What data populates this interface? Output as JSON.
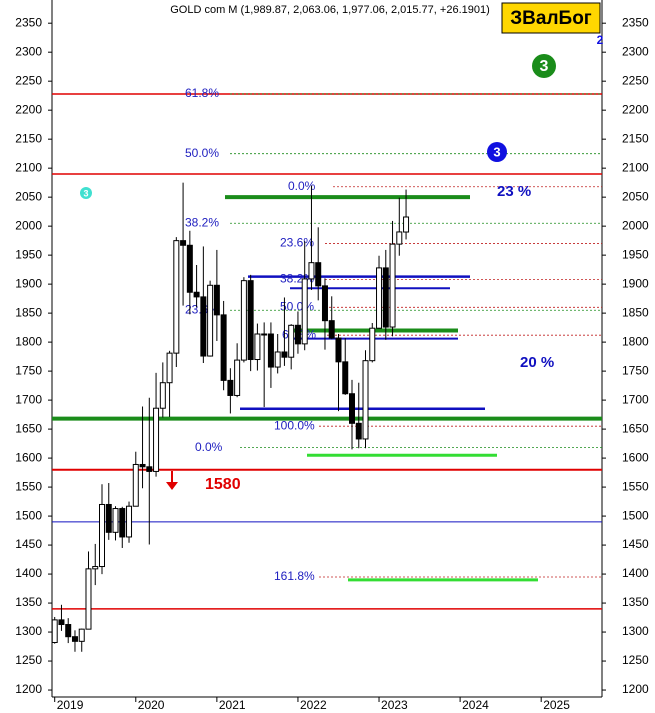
{
  "chart_data": {
    "type": "candlestick",
    "title": "GOLD com M (1,989.87, 2,063.06, 1,977.06, 2,015.77, +26.1901)",
    "badge": "ЗВалБог",
    "open": [
      1282,
      1321,
      1313,
      1292,
      1284,
      1305,
      1409,
      1413,
      1520,
      1472,
      1513,
      1464,
      1517,
      1589,
      1585,
      1577,
      1686,
      1730,
      1781,
      1975,
      1967,
      1886,
      1878,
      1776,
      1898,
      1847,
      1734,
      1708,
      1769,
      1906,
      1770,
      1814,
      1814,
      1757,
      1783,
      1774,
      1829,
      1797,
      1909,
      1937,
      1897,
      1837,
      1807,
      1766,
      1711,
      1660,
      1633,
      1768,
      1824,
      1928,
      1826,
      1969,
      1989.87
    ],
    "high": [
      1326,
      1347,
      1324,
      1303,
      1306,
      1439,
      1452,
      1555,
      1557,
      1517,
      1516,
      1525,
      1611,
      1689,
      1704,
      1747,
      1765,
      1785,
      1981,
      2075,
      1992,
      1933,
      1965,
      1906,
      1959,
      1871,
      1755,
      1798,
      1912,
      1916,
      1832,
      1834,
      1834,
      1814,
      1877,
      1831,
      1853,
      1974,
      2070,
      1998,
      1910,
      1879,
      1814,
      1807,
      1735,
      1730,
      1786,
      1833,
      1949,
      1959,
      2009,
      2049,
      2063.06
    ],
    "low": [
      1280,
      1302,
      1281,
      1266,
      1266,
      1306,
      1381,
      1400,
      1459,
      1458,
      1445,
      1454,
      1517,
      1548,
      1451,
      1568,
      1670,
      1671,
      1757,
      1863,
      1848,
      1860,
      1764,
      1775,
      1802,
      1717,
      1677,
      1705,
      1765,
      1750,
      1751,
      1688,
      1721,
      1746,
      1759,
      1753,
      1780,
      1786,
      1890,
      1872,
      1787,
      1805,
      1681,
      1709,
      1615,
      1617,
      1617,
      1765,
      1823,
      1804,
      1810,
      1949,
      1977.06
    ],
    "close": [
      1321,
      1313,
      1292,
      1284,
      1305,
      1409,
      1413,
      1520,
      1472,
      1513,
      1464,
      1517,
      1589,
      1585,
      1577,
      1686,
      1730,
      1781,
      1975,
      1967,
      1886,
      1878,
      1776,
      1898,
      1847,
      1734,
      1708,
      1769,
      1906,
      1770,
      1814,
      1814,
      1757,
      1783,
      1774,
      1829,
      1797,
      1909,
      1937,
      1897,
      1837,
      1807,
      1766,
      1711,
      1660,
      1633,
      1768,
      1824,
      1928,
      1826,
      1969,
      1990,
      2015.77
    ],
    "xlim": [
      -0.4,
      81
    ],
    "xticks": [
      {
        "value": 0,
        "label": "2019"
      },
      {
        "value": 12,
        "label": "2020"
      },
      {
        "value": 24,
        "label": "2021"
      },
      {
        "value": 36,
        "label": "2022"
      },
      {
        "value": 48,
        "label": "2023"
      },
      {
        "value": 60,
        "label": "2024"
      },
      {
        "value": 72,
        "label": "2025"
      }
    ],
    "ylim": [
      1188,
      2390
    ],
    "yticks": [
      1200,
      1250,
      1300,
      1350,
      1400,
      1450,
      1500,
      1550,
      1600,
      1650,
      1700,
      1750,
      1800,
      1850,
      1900,
      1950,
      2000,
      2050,
      2100,
      2150,
      2200,
      2250,
      2300,
      2350
    ],
    "levels": [
      {
        "value": 2228,
        "color": "#e00000"
      },
      {
        "value": 2090,
        "color": "#e00000"
      },
      {
        "value": 1580,
        "color": "#e00000"
      },
      {
        "value": 1340,
        "color": "#e00000"
      },
      {
        "value": 2050,
        "color": "#1a8c1a"
      },
      {
        "value": 1668,
        "color": "#1a8c1a"
      },
      {
        "value": 1820,
        "color": "#1a8c1a"
      },
      {
        "value": 1913,
        "color": "#1010c0"
      },
      {
        "value": 1893,
        "color": "#1010c0"
      },
      {
        "value": 1806,
        "color": "#1010c0"
      },
      {
        "value": 1685,
        "color": "#1010c0"
      },
      {
        "value": 1490,
        "color": "#1010c0"
      },
      {
        "value": 1605,
        "color": "#33dd33"
      },
      {
        "value": 1390,
        "color": "#33dd33"
      }
    ],
    "fib": [
      {
        "label": "61.8%",
        "value": 2228
      },
      {
        "label": "50.0%",
        "value": 2125
      },
      {
        "label": "0.0%",
        "value": 2068
      },
      {
        "label": "38.2%",
        "value": 2005
      },
      {
        "label": "23.6%",
        "value": 1970
      },
      {
        "label": "38.2%",
        "value": 1908
      },
      {
        "label": "50.0%",
        "value": 1860
      },
      {
        "label": "23.6%",
        "value": 1855
      },
      {
        "label": "61.8%",
        "value": 1812
      },
      {
        "label": "100.0%",
        "value": 1655
      },
      {
        "label": "0.0%",
        "value": 1618
      },
      {
        "label": "161.8%",
        "value": 1395
      }
    ],
    "annotations": [
      "23 %",
      "20 %",
      "1580"
    ],
    "markers": [
      "3",
      "3",
      "3",
      "2"
    ]
  }
}
